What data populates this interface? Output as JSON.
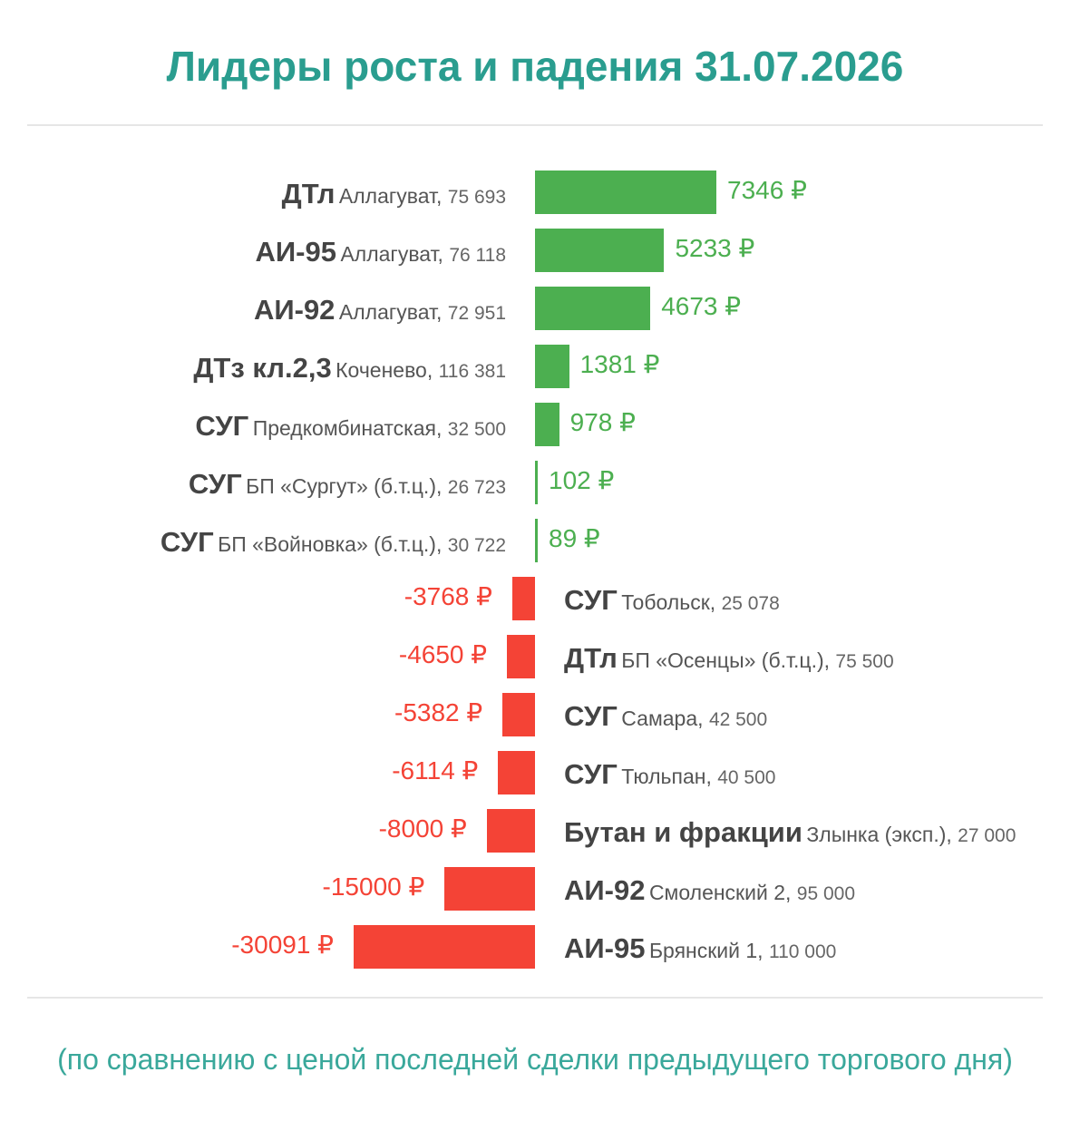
{
  "title": "Лидеры роста и падения 31.07.2026",
  "footnote": "(по сравнению с ценой последней сделки предыдущего торгового дня)",
  "colors": {
    "title": "#2a9d8f",
    "positive": "#4caf50",
    "negative": "#f44336"
  },
  "chart_data": {
    "type": "bar",
    "orientation": "horizontal-diverging",
    "unit": "₽",
    "rows": [
      {
        "product": "ДТл",
        "location": "Аллагуват",
        "volume": "75 693",
        "value": 7346,
        "label": "7346 ₽"
      },
      {
        "product": "АИ-95",
        "location": "Аллагуват",
        "volume": "76 118",
        "value": 5233,
        "label": "5233 ₽"
      },
      {
        "product": "АИ-92",
        "location": "Аллагуват",
        "volume": "72 951",
        "value": 4673,
        "label": "4673 ₽"
      },
      {
        "product": "ДТз кл.2,3",
        "location": "Коченево",
        "volume": "116 381",
        "value": 1381,
        "label": "1381 ₽"
      },
      {
        "product": "СУГ",
        "location": "Предкомбинатская",
        "volume": "32 500",
        "value": 978,
        "label": "978 ₽"
      },
      {
        "product": "СУГ",
        "location": "БП «Сургут» (б.т.ц.)",
        "volume": "26 723",
        "value": 102,
        "label": "102 ₽"
      },
      {
        "product": "СУГ",
        "location": "БП «Войновка» (б.т.ц.)",
        "volume": "30 722",
        "value": 89,
        "label": "89 ₽"
      },
      {
        "product": "СУГ",
        "location": "Тобольск",
        "volume": "25 078",
        "value": -3768,
        "label": "-3768 ₽"
      },
      {
        "product": "ДТл",
        "location": "БП «Осенцы» (б.т.ц.)",
        "volume": "75 500",
        "value": -4650,
        "label": "-4650 ₽"
      },
      {
        "product": "СУГ",
        "location": "Самара",
        "volume": "42 500",
        "value": -5382,
        "label": "-5382 ₽"
      },
      {
        "product": "СУГ",
        "location": "Тюльпан",
        "volume": "40 500",
        "value": -6114,
        "label": "-6114 ₽"
      },
      {
        "product": "Бутан и фракции",
        "location": "Злынка (эксп.)",
        "volume": "27 000",
        "value": -8000,
        "label": "-8000 ₽"
      },
      {
        "product": "АИ-92",
        "location": "Смоленский 2",
        "volume": "95 000",
        "value": -15000,
        "label": "-15000 ₽"
      },
      {
        "product": "АИ-95",
        "location": "Брянский 1",
        "volume": "110 000",
        "value": -30091,
        "label": "-30091 ₽"
      }
    ]
  }
}
